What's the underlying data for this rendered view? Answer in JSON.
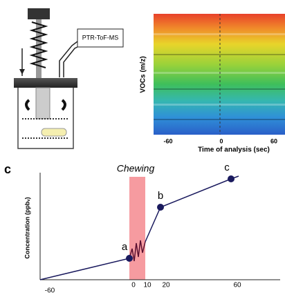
{
  "panel_a": {
    "instrument_label": "PTR-ToF-MS"
  },
  "panel_b": {
    "y_label": "VOCs (m/z)",
    "x_label": "Time of analysis (sec)",
    "x_ticks": [
      "-60",
      "0",
      "60"
    ]
  },
  "panel_c": {
    "panel_letter": "c",
    "band_label": "Chewing",
    "y_label": "Concentration (ppbᵥ)",
    "points": [
      "a",
      "b",
      "c"
    ],
    "x_ticks": [
      "-60",
      "0",
      "10",
      "20",
      "60"
    ]
  }
}
